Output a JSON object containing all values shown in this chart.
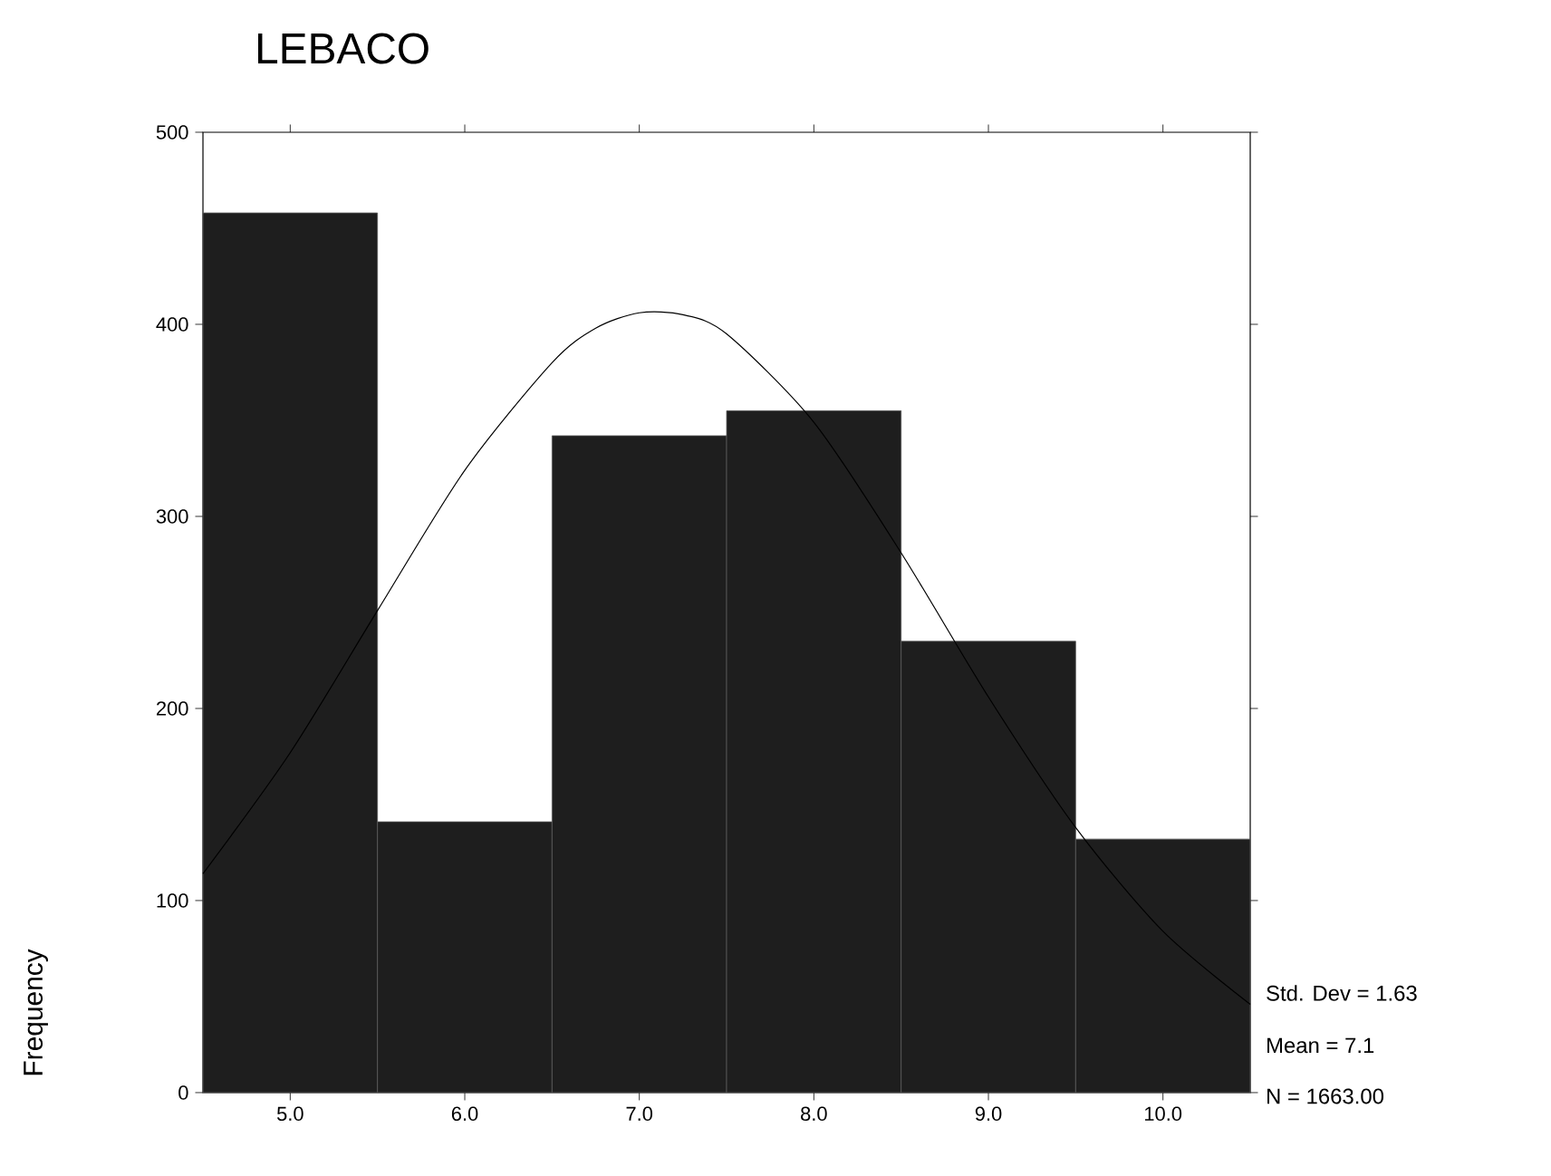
{
  "chart_data": {
    "type": "histogram",
    "title": "LEBACO",
    "ylabel": "Frequency",
    "bins": [
      4.5,
      5.5,
      6.5,
      7.5,
      8.5,
      9.5,
      10.5
    ],
    "values": [
      458,
      141,
      342,
      355,
      235,
      132
    ],
    "color": "#1e1e1e",
    "series": [
      {
        "type": "line",
        "color": "#000000",
        "x": [
          4.5,
          5.0,
          5.5,
          6.0,
          6.5,
          6.75,
          7.0,
          7.25,
          7.5,
          8.0,
          8.5,
          9.0,
          9.5,
          10.0,
          10.5
        ],
        "values": [
          114,
          177,
          251,
          324,
          380,
          398,
          406,
          405,
          395,
          349,
          281,
          206,
          138,
          84,
          46
        ]
      }
    ],
    "xlim": [
      4.5,
      10.5
    ],
    "ylim": [
      0,
      500
    ],
    "xticks": [
      {
        "value": 5,
        "label": "5.0"
      },
      {
        "value": 6,
        "label": "6.0"
      },
      {
        "value": 7,
        "label": "7.0"
      },
      {
        "value": 8,
        "label": "8.0"
      },
      {
        "value": 9,
        "label": "9.0"
      },
      {
        "value": 10,
        "label": "10.0"
      }
    ],
    "yticks": [
      0,
      100,
      200,
      300,
      400,
      500
    ],
    "annotations": [
      "Std. Dev = 1.63",
      "Mean = 7.1",
      "N = 1663.00"
    ]
  }
}
